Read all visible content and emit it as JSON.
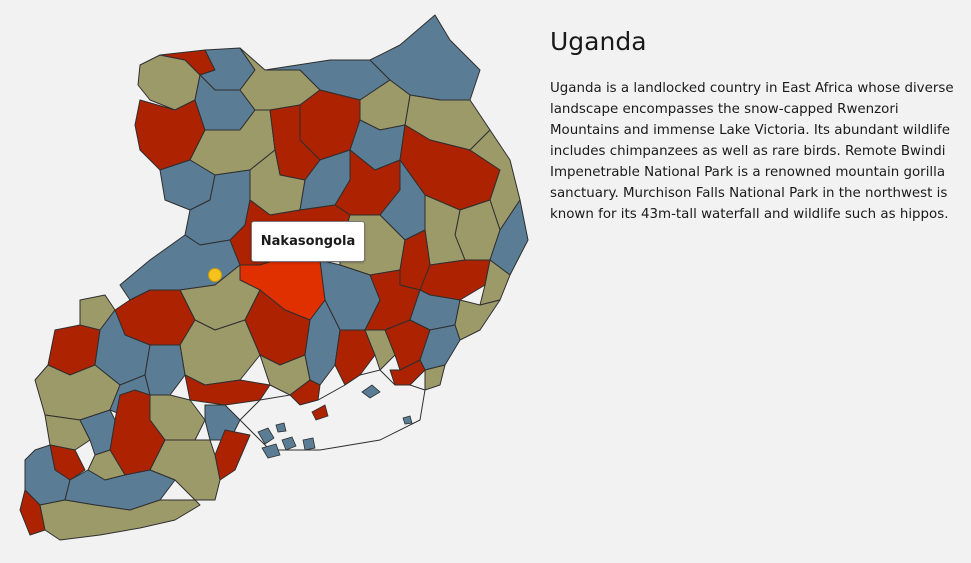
{
  "country": {
    "title": "Uganda",
    "description": "Uganda is a landlocked country in East Africa whose diverse landscape encompasses the snow-capped Rwenzori Mountains and immense Lake Victoria. Its abundant wildlife includes chimpanzees as well as rare birds. Remote Bwindi Impenetrable National Park is a renowned mountain gorilla sanctuary. Murchison Falls National Park in the northwest is known for its 43m-tall waterfall and wildlife such as hippos."
  },
  "tooltip": {
    "label": "Nakasongola"
  },
  "colors": {
    "background": "#f2f2f2",
    "red": "#ad2200",
    "blue": "#5a7d95",
    "olive": "#9d9a6a",
    "highlight": "#e03000",
    "marker": "#f6c21c",
    "border": "#2f2f2f"
  }
}
